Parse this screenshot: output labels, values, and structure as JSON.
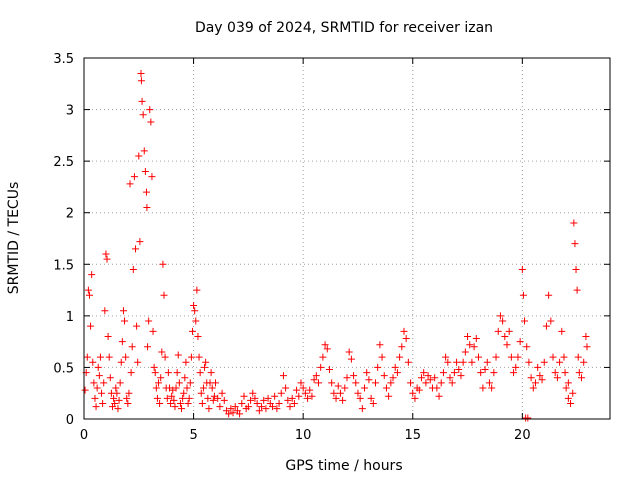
{
  "chart_data": {
    "type": "scatter",
    "title": "Day 039 of 2024, SRMTID for receiver izan",
    "xlabel": "GPS time / hours",
    "ylabel": "SRMTID / TECUs",
    "xlim": [
      0,
      24
    ],
    "ylim": [
      0,
      3.5
    ],
    "xticks": [
      0,
      5,
      10,
      15,
      20
    ],
    "xtick_labels": [
      "0",
      "5",
      "10",
      "15",
      "20"
    ],
    "yticks": [
      0,
      0.5,
      1,
      1.5,
      2,
      2.5,
      3,
      3.5
    ],
    "ytick_labels": [
      "0",
      "0.5",
      "1",
      "1.5",
      "2",
      "2.5",
      "3",
      "3.5"
    ],
    "grid": true,
    "marker": "plus",
    "color": "#ff0000",
    "series": [
      {
        "name": "SRMTID",
        "points": [
          [
            0.05,
            0.28
          ],
          [
            0.1,
            0.45
          ],
          [
            0.15,
            0.6
          ],
          [
            0.2,
            1.25
          ],
          [
            0.25,
            1.2
          ],
          [
            0.3,
            0.9
          ],
          [
            0.35,
            1.4
          ],
          [
            0.4,
            0.55
          ],
          [
            0.45,
            0.35
          ],
          [
            0.5,
            0.2
          ],
          [
            0.55,
            0.12
          ],
          [
            0.6,
            0.3
          ],
          [
            0.65,
            0.5
          ],
          [
            0.7,
            0.42
          ],
          [
            0.75,
            0.6
          ],
          [
            0.8,
            0.25
          ],
          [
            0.85,
            0.15
          ],
          [
            0.9,
            0.35
          ],
          [
            0.95,
            1.05
          ],
          [
            1.0,
            1.6
          ],
          [
            1.05,
            1.55
          ],
          [
            1.1,
            0.8
          ],
          [
            1.15,
            0.6
          ],
          [
            1.2,
            0.4
          ],
          [
            1.25,
            0.25
          ],
          [
            1.3,
            0.12
          ],
          [
            1.35,
            0.2
          ],
          [
            1.4,
            0.15
          ],
          [
            1.45,
            0.3
          ],
          [
            1.5,
            0.25
          ],
          [
            1.55,
            0.1
          ],
          [
            1.6,
            0.18
          ],
          [
            1.65,
            0.35
          ],
          [
            1.7,
            0.55
          ],
          [
            1.75,
            0.75
          ],
          [
            1.8,
            1.05
          ],
          [
            1.85,
            0.95
          ],
          [
            1.9,
            0.6
          ],
          [
            1.95,
            0.2
          ],
          [
            2.0,
            0.15
          ],
          [
            2.05,
            0.25
          ],
          [
            2.1,
            2.28
          ],
          [
            2.15,
            0.45
          ],
          [
            2.2,
            0.7
          ],
          [
            2.25,
            1.45
          ],
          [
            2.3,
            2.35
          ],
          [
            2.35,
            1.65
          ],
          [
            2.4,
            0.9
          ],
          [
            2.45,
            0.55
          ],
          [
            2.5,
            2.55
          ],
          [
            2.55,
            1.72
          ],
          [
            2.6,
            3.35
          ],
          [
            2.62,
            3.28
          ],
          [
            2.65,
            3.08
          ],
          [
            2.7,
            2.95
          ],
          [
            2.75,
            2.6
          ],
          [
            2.8,
            2.4
          ],
          [
            2.85,
            2.2
          ],
          [
            2.87,
            2.05
          ],
          [
            2.9,
            0.7
          ],
          [
            2.95,
            0.95
          ],
          [
            3.0,
            3.0
          ],
          [
            3.05,
            2.88
          ],
          [
            3.1,
            2.35
          ],
          [
            3.15,
            0.85
          ],
          [
            3.2,
            0.5
          ],
          [
            3.25,
            0.45
          ],
          [
            3.3,
            0.3
          ],
          [
            3.35,
            0.2
          ],
          [
            3.4,
            0.35
          ],
          [
            3.45,
            0.15
          ],
          [
            3.5,
            0.4
          ],
          [
            3.55,
            0.65
          ],
          [
            3.6,
            1.5
          ],
          [
            3.65,
            1.2
          ],
          [
            3.7,
            0.6
          ],
          [
            3.75,
            0.3
          ],
          [
            3.8,
            0.2
          ],
          [
            3.85,
            0.45
          ],
          [
            3.9,
            0.3
          ],
          [
            3.95,
            0.15
          ],
          [
            4.0,
            0.22
          ],
          [
            4.05,
            0.28
          ],
          [
            4.1,
            0.18
          ],
          [
            4.15,
            0.12
          ],
          [
            4.2,
            0.3
          ],
          [
            4.25,
            0.45
          ],
          [
            4.3,
            0.62
          ],
          [
            4.35,
            0.35
          ],
          [
            4.4,
            0.15
          ],
          [
            4.45,
            0.1
          ],
          [
            4.5,
            0.2
          ],
          [
            4.55,
            0.25
          ],
          [
            4.6,
            0.4
          ],
          [
            4.65,
            0.55
          ],
          [
            4.7,
            0.3
          ],
          [
            4.75,
            0.15
          ],
          [
            4.8,
            0.2
          ],
          [
            4.85,
            0.35
          ],
          [
            4.9,
            0.6
          ],
          [
            4.95,
            0.85
          ],
          [
            5.0,
            1.1
          ],
          [
            5.05,
            1.05
          ],
          [
            5.1,
            0.95
          ],
          [
            5.15,
            1.25
          ],
          [
            5.2,
            0.8
          ],
          [
            5.25,
            0.6
          ],
          [
            5.3,
            0.45
          ],
          [
            5.35,
            0.25
          ],
          [
            5.4,
            0.15
          ],
          [
            5.45,
            0.3
          ],
          [
            5.5,
            0.5
          ],
          [
            5.55,
            0.55
          ],
          [
            5.6,
            0.35
          ],
          [
            5.65,
            0.2
          ],
          [
            5.7,
            0.1
          ],
          [
            5.75,
            0.35
          ],
          [
            5.8,
            0.45
          ],
          [
            5.85,
            0.3
          ],
          [
            5.9,
            0.18
          ],
          [
            5.95,
            0.22
          ],
          [
            6.0,
            0.35
          ],
          [
            6.1,
            0.2
          ],
          [
            6.2,
            0.12
          ],
          [
            6.3,
            0.25
          ],
          [
            6.4,
            0.18
          ],
          [
            6.5,
            0.08
          ],
          [
            6.6,
            0.05
          ],
          [
            6.7,
            0.1
          ],
          [
            6.8,
            0.06
          ],
          [
            6.9,
            0.12
          ],
          [
            7.0,
            0.08
          ],
          [
            7.1,
            0.05
          ],
          [
            7.2,
            0.15
          ],
          [
            7.3,
            0.22
          ],
          [
            7.4,
            0.1
          ],
          [
            7.5,
            0.12
          ],
          [
            7.6,
            0.18
          ],
          [
            7.7,
            0.25
          ],
          [
            7.8,
            0.2
          ],
          [
            7.9,
            0.15
          ],
          [
            8.0,
            0.08
          ],
          [
            8.1,
            0.12
          ],
          [
            8.2,
            0.18
          ],
          [
            8.3,
            0.1
          ],
          [
            8.4,
            0.2
          ],
          [
            8.5,
            0.15
          ],
          [
            8.6,
            0.12
          ],
          [
            8.7,
            0.22
          ],
          [
            8.8,
            0.1
          ],
          [
            8.9,
            0.15
          ],
          [
            9.0,
            0.25
          ],
          [
            9.1,
            0.42
          ],
          [
            9.2,
            0.3
          ],
          [
            9.3,
            0.18
          ],
          [
            9.4,
            0.12
          ],
          [
            9.5,
            0.2
          ],
          [
            9.6,
            0.15
          ],
          [
            9.7,
            0.28
          ],
          [
            9.8,
            0.22
          ],
          [
            9.9,
            0.35
          ],
          [
            10.0,
            0.3
          ],
          [
            10.1,
            0.25
          ],
          [
            10.2,
            0.2
          ],
          [
            10.3,
            0.28
          ],
          [
            10.4,
            0.22
          ],
          [
            10.5,
            0.38
          ],
          [
            10.6,
            0.42
          ],
          [
            10.7,
            0.35
          ],
          [
            10.8,
            0.5
          ],
          [
            10.9,
            0.6
          ],
          [
            11.0,
            0.72
          ],
          [
            11.1,
            0.68
          ],
          [
            11.2,
            0.48
          ],
          [
            11.3,
            0.35
          ],
          [
            11.4,
            0.25
          ],
          [
            11.5,
            0.2
          ],
          [
            11.6,
            0.32
          ],
          [
            11.7,
            0.25
          ],
          [
            11.8,
            0.18
          ],
          [
            11.9,
            0.3
          ],
          [
            12.0,
            0.4
          ],
          [
            12.1,
            0.65
          ],
          [
            12.2,
            0.58
          ],
          [
            12.3,
            0.42
          ],
          [
            12.4,
            0.35
          ],
          [
            12.5,
            0.25
          ],
          [
            12.6,
            0.2
          ],
          [
            12.7,
            0.1
          ],
          [
            12.8,
            0.3
          ],
          [
            12.9,
            0.45
          ],
          [
            13.0,
            0.38
          ],
          [
            13.1,
            0.2
          ],
          [
            13.2,
            0.15
          ],
          [
            13.3,
            0.35
          ],
          [
            13.4,
            0.5
          ],
          [
            13.5,
            0.72
          ],
          [
            13.6,
            0.6
          ],
          [
            13.7,
            0.42
          ],
          [
            13.8,
            0.3
          ],
          [
            13.9,
            0.22
          ],
          [
            14.0,
            0.35
          ],
          [
            14.1,
            0.4
          ],
          [
            14.2,
            0.5
          ],
          [
            14.3,
            0.45
          ],
          [
            14.4,
            0.6
          ],
          [
            14.5,
            0.7
          ],
          [
            14.6,
            0.85
          ],
          [
            14.7,
            0.78
          ],
          [
            14.8,
            0.55
          ],
          [
            14.9,
            0.35
          ],
          [
            15.0,
            0.25
          ],
          [
            15.1,
            0.2
          ],
          [
            15.2,
            0.3
          ],
          [
            15.3,
            0.28
          ],
          [
            15.4,
            0.4
          ],
          [
            15.5,
            0.45
          ],
          [
            15.6,
            0.35
          ],
          [
            15.7,
            0.42
          ],
          [
            15.8,
            0.38
          ],
          [
            15.9,
            0.3
          ],
          [
            16.0,
            0.4
          ],
          [
            16.1,
            0.3
          ],
          [
            16.2,
            0.22
          ],
          [
            16.3,
            0.35
          ],
          [
            16.4,
            0.45
          ],
          [
            16.5,
            0.6
          ],
          [
            16.6,
            0.55
          ],
          [
            16.7,
            0.4
          ],
          [
            16.8,
            0.35
          ],
          [
            16.9,
            0.45
          ],
          [
            17.0,
            0.55
          ],
          [
            17.1,
            0.48
          ],
          [
            17.2,
            0.42
          ],
          [
            17.3,
            0.55
          ],
          [
            17.4,
            0.65
          ],
          [
            17.5,
            0.8
          ],
          [
            17.6,
            0.72
          ],
          [
            17.7,
            0.55
          ],
          [
            17.8,
            0.7
          ],
          [
            17.9,
            0.78
          ],
          [
            18.0,
            0.6
          ],
          [
            18.1,
            0.45
          ],
          [
            18.2,
            0.3
          ],
          [
            18.3,
            0.48
          ],
          [
            18.4,
            0.55
          ],
          [
            18.5,
            0.35
          ],
          [
            18.6,
            0.3
          ],
          [
            18.7,
            0.45
          ],
          [
            18.8,
            0.6
          ],
          [
            18.9,
            0.85
          ],
          [
            19.0,
            1.0
          ],
          [
            19.1,
            0.95
          ],
          [
            19.2,
            0.8
          ],
          [
            19.3,
            0.72
          ],
          [
            19.4,
            0.85
          ],
          [
            19.5,
            0.6
          ],
          [
            19.6,
            0.45
          ],
          [
            19.7,
            0.5
          ],
          [
            19.8,
            0.6
          ],
          [
            19.9,
            0.75
          ],
          [
            20.0,
            1.45
          ],
          [
            20.05,
            1.2
          ],
          [
            20.1,
            0.95
          ],
          [
            20.15,
            0.01
          ],
          [
            20.2,
            0.7
          ],
          [
            20.25,
            0.01
          ],
          [
            20.3,
            0.55
          ],
          [
            20.4,
            0.4
          ],
          [
            20.5,
            0.3
          ],
          [
            20.6,
            0.35
          ],
          [
            20.7,
            0.5
          ],
          [
            20.8,
            0.42
          ],
          [
            20.9,
            0.38
          ],
          [
            21.0,
            0.55
          ],
          [
            21.1,
            0.9
          ],
          [
            21.2,
            1.2
          ],
          [
            21.3,
            0.95
          ],
          [
            21.4,
            0.6
          ],
          [
            21.5,
            0.45
          ],
          [
            21.6,
            0.4
          ],
          [
            21.7,
            0.55
          ],
          [
            21.8,
            0.85
          ],
          [
            21.9,
            0.6
          ],
          [
            22.0,
            0.3
          ],
          [
            22.1,
            0.2
          ],
          [
            22.2,
            0.15
          ],
          [
            22.3,
            0.25
          ],
          [
            22.35,
            1.9
          ],
          [
            22.4,
            1.7
          ],
          [
            22.45,
            1.45
          ],
          [
            22.5,
            1.25
          ],
          [
            22.55,
            0.6
          ],
          [
            22.6,
            0.45
          ],
          [
            22.7,
            0.4
          ],
          [
            22.8,
            0.55
          ],
          [
            22.9,
            0.8
          ],
          [
            22.95,
            0.7
          ],
          [
            22.1,
            0.35
          ],
          [
            21.95,
            0.45
          ]
        ]
      }
    ]
  }
}
